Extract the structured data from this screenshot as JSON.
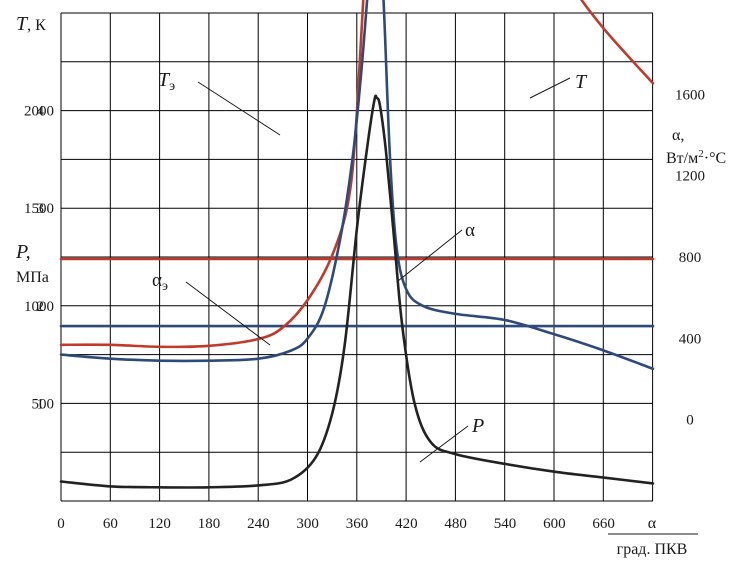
{
  "chart_data": {
    "type": "line",
    "x_axis": {
      "label": "α",
      "label_sub": "град. ПКВ",
      "ticks": [
        0,
        60,
        120,
        180,
        240,
        300,
        360,
        420,
        480,
        540,
        600,
        660
      ],
      "range": [
        0,
        720
      ]
    },
    "axis_T": {
      "label": "T, К",
      "label_name": "T",
      "label_unit": ", К",
      "ticks": [
        500,
        1000,
        1500,
        2000
      ],
      "range": [
        0,
        2500
      ]
    },
    "axis_P": {
      "label": "P, МПа",
      "label_line1": "P,",
      "label_line2": "МПа",
      "ticks": [
        1,
        2,
        3,
        4
      ],
      "range": [
        0,
        5
      ]
    },
    "axis_alpha": {
      "label": "α, Вт/м²·°С",
      "label_line1": "α,",
      "label_line2_pre": "Вт/м",
      "label_line2_sup": "2",
      "label_line2_post": "·°С",
      "ticks": [
        0,
        400,
        800,
        1200,
        1600
      ],
      "range": [
        -400,
        2000
      ]
    },
    "grid": true,
    "series": [
      {
        "name": "T",
        "axis": "T",
        "color": "#c0392b",
        "points": [
          [
            0,
            800
          ],
          [
            60,
            800
          ],
          [
            120,
            790
          ],
          [
            180,
            795
          ],
          [
            240,
            830
          ],
          [
            270,
            890
          ],
          [
            300,
            1030
          ],
          [
            330,
            1260
          ],
          [
            350,
            1550
          ],
          [
            360,
            2000
          ],
          [
            372,
            2900
          ],
          [
            382,
            3400
          ],
          [
            393,
            3940
          ],
          [
            398,
            3990
          ],
          [
            405,
            3800
          ],
          [
            415,
            3540
          ],
          [
            440,
            3410
          ],
          [
            480,
            3290
          ],
          [
            510,
            3280
          ],
          [
            540,
            3220
          ],
          [
            580,
            2950
          ],
          [
            620,
            2650
          ],
          [
            660,
            2420
          ],
          [
            720,
            2140
          ]
        ]
      },
      {
        "name": "Tэ",
        "axis": "T",
        "color": "#c0392b",
        "points": [
          [
            0,
            1240
          ],
          [
            720,
            1240
          ]
        ]
      },
      {
        "name": "α",
        "axis": "alpha",
        "color": "#2d4a7a",
        "points": [
          [
            0,
            320
          ],
          [
            60,
            300
          ],
          [
            120,
            290
          ],
          [
            180,
            290
          ],
          [
            240,
            300
          ],
          [
            280,
            340
          ],
          [
            300,
            400
          ],
          [
            320,
            550
          ],
          [
            340,
            900
          ],
          [
            355,
            1300
          ],
          [
            365,
            1700
          ],
          [
            373,
            2100
          ],
          [
            381,
            2500
          ],
          [
            384,
            2550
          ],
          [
            388,
            2400
          ],
          [
            393,
            2000
          ],
          [
            400,
            1300
          ],
          [
            408,
            850
          ],
          [
            420,
            640
          ],
          [
            440,
            560
          ],
          [
            480,
            520
          ],
          [
            540,
            490
          ],
          [
            600,
            420
          ],
          [
            660,
            340
          ],
          [
            720,
            250
          ]
        ]
      },
      {
        "name": "αэ",
        "axis": "alpha",
        "color": "#2d4a7a",
        "points": [
          [
            0,
            460
          ],
          [
            720,
            460
          ]
        ]
      },
      {
        "name": "P",
        "axis": "P",
        "color": "#222222",
        "points": [
          [
            0,
            0.2
          ],
          [
            60,
            0.15
          ],
          [
            120,
            0.14
          ],
          [
            180,
            0.14
          ],
          [
            240,
            0.16
          ],
          [
            280,
            0.22
          ],
          [
            310,
            0.45
          ],
          [
            330,
            0.9
          ],
          [
            345,
            1.6
          ],
          [
            360,
            2.8
          ],
          [
            372,
            3.6
          ],
          [
            381,
            4.1
          ],
          [
            384,
            4.13
          ],
          [
            388,
            4.05
          ],
          [
            395,
            3.6
          ],
          [
            405,
            2.7
          ],
          [
            415,
            1.8
          ],
          [
            430,
            1.0
          ],
          [
            450,
            0.6
          ],
          [
            480,
            0.48
          ],
          [
            540,
            0.38
          ],
          [
            600,
            0.3
          ],
          [
            660,
            0.24
          ],
          [
            720,
            0.18
          ]
        ]
      }
    ],
    "annotations": [
      {
        "series": "T",
        "text": "T"
      },
      {
        "series": "Tэ",
        "text_main": "T",
        "text_sub": "э"
      },
      {
        "series": "α",
        "text": "α"
      },
      {
        "series": "αэ",
        "text_main": "α",
        "text_sub": "э"
      },
      {
        "series": "P",
        "text": "P"
      }
    ]
  }
}
